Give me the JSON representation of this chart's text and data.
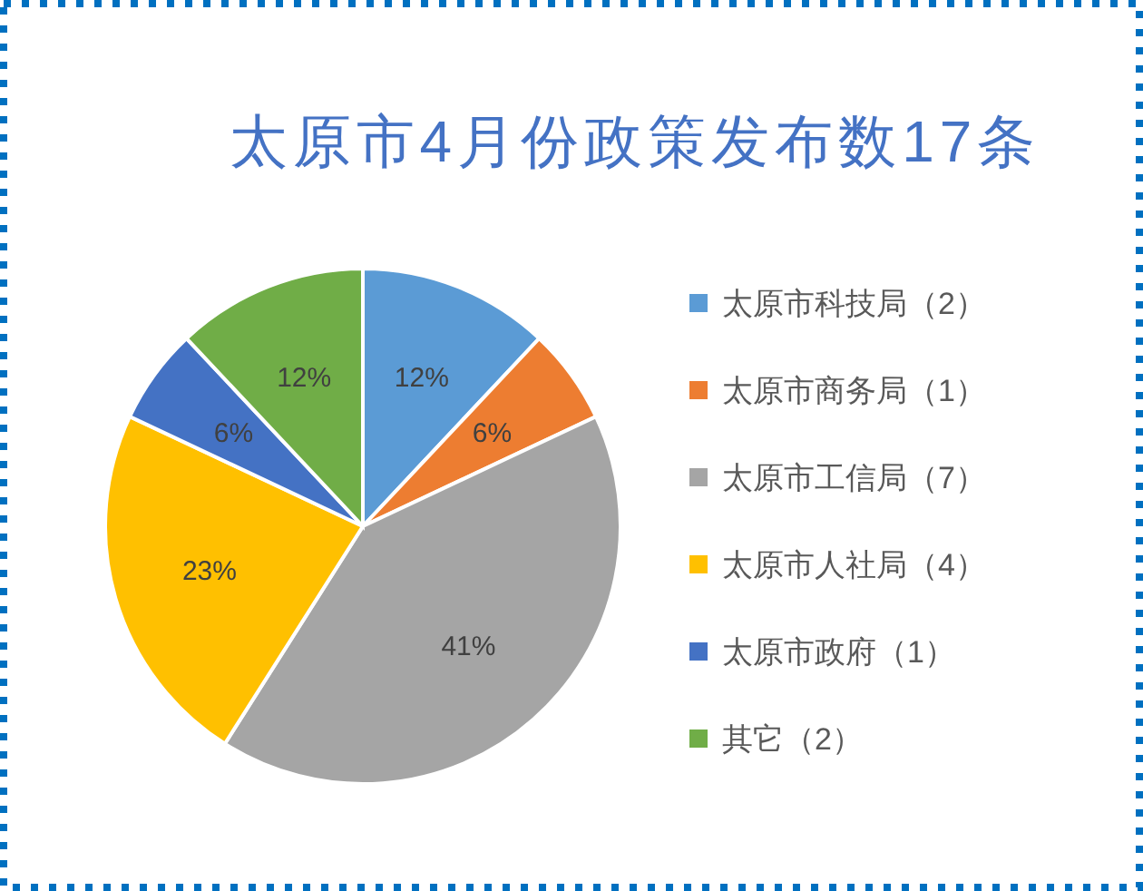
{
  "chart_data": {
    "type": "pie",
    "title": "太原市4月份政策发布数17条",
    "categories": [
      "太原市科技局（2）",
      "太原市商务局（1）",
      "太原市工信局（7）",
      "太原市人社局（4）",
      "太原市政府（1）",
      "其它（2）"
    ],
    "values": [
      12,
      6,
      41,
      23,
      6,
      12
    ],
    "colors": [
      "#5b9bd5",
      "#ed7d31",
      "#a5a5a5",
      "#ffc000",
      "#4472c4",
      "#70ad47"
    ],
    "value_labels": [
      "12%",
      "6%",
      "41%",
      "23%",
      "6%",
      "12%"
    ],
    "legend": "right"
  }
}
